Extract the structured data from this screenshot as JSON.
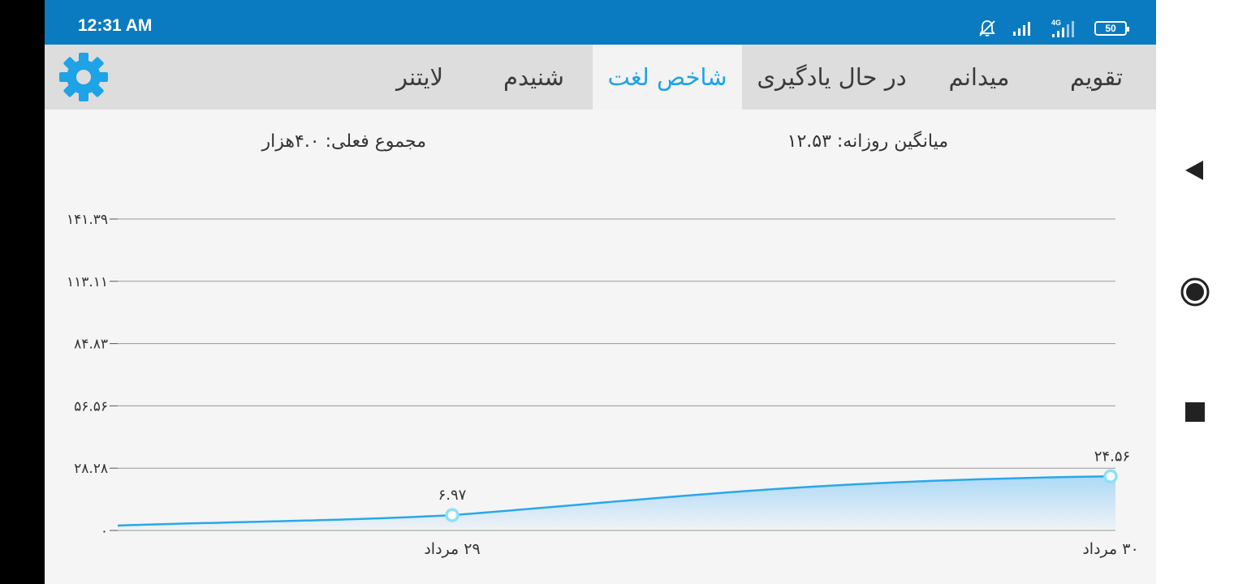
{
  "status_bar": {
    "time": "12:31 AM",
    "network_label": "4G",
    "battery_level": "50",
    "icons": [
      "mute-icon",
      "signal-icon",
      "signal-4g-icon",
      "battery-icon"
    ]
  },
  "tabs": [
    {
      "label": "تقویم",
      "active": false
    },
    {
      "label": "میدانم",
      "active": false
    },
    {
      "label": "در حال یادگیری",
      "active": false
    },
    {
      "label": "شاخص لغت",
      "active": true
    },
    {
      "label": "شنیدم",
      "active": false
    },
    {
      "label": "لایتنر",
      "active": false
    }
  ],
  "settings_icon": "gear-icon",
  "summary": {
    "daily_average": "میانگین روزانه: ۱۲.۵۳",
    "total": "مجموع فعلی: ۴.۰هزار"
  },
  "colors": {
    "status_bar": "#0a7bc0",
    "accent": "#1ea3e6",
    "line": "#2aa7ea",
    "point_ring": "#8ee0f5",
    "fill_top": "#a9d8f7"
  },
  "chart_data": {
    "type": "area",
    "x": [
      "۲۹ مرداد",
      "۳۰ مرداد"
    ],
    "values": [
      6.97,
      24.56
    ],
    "point_labels": [
      "۶.۹۷",
      "۲۴.۵۶"
    ],
    "y_ticks": [
      0,
      28.28,
      56.56,
      84.83,
      113.11,
      141.39
    ],
    "y_tick_labels": [
      "۰",
      "۲۸.۲۸",
      "۵۶.۵۶",
      "۸۴.۸۳",
      "۱۱۳.۱۱",
      "۱۴۱.۳۹"
    ],
    "ylim": [
      0,
      141.39
    ],
    "grid": true
  },
  "nav_bar": {
    "icons": [
      "back-icon",
      "home-icon",
      "recents-icon"
    ]
  }
}
